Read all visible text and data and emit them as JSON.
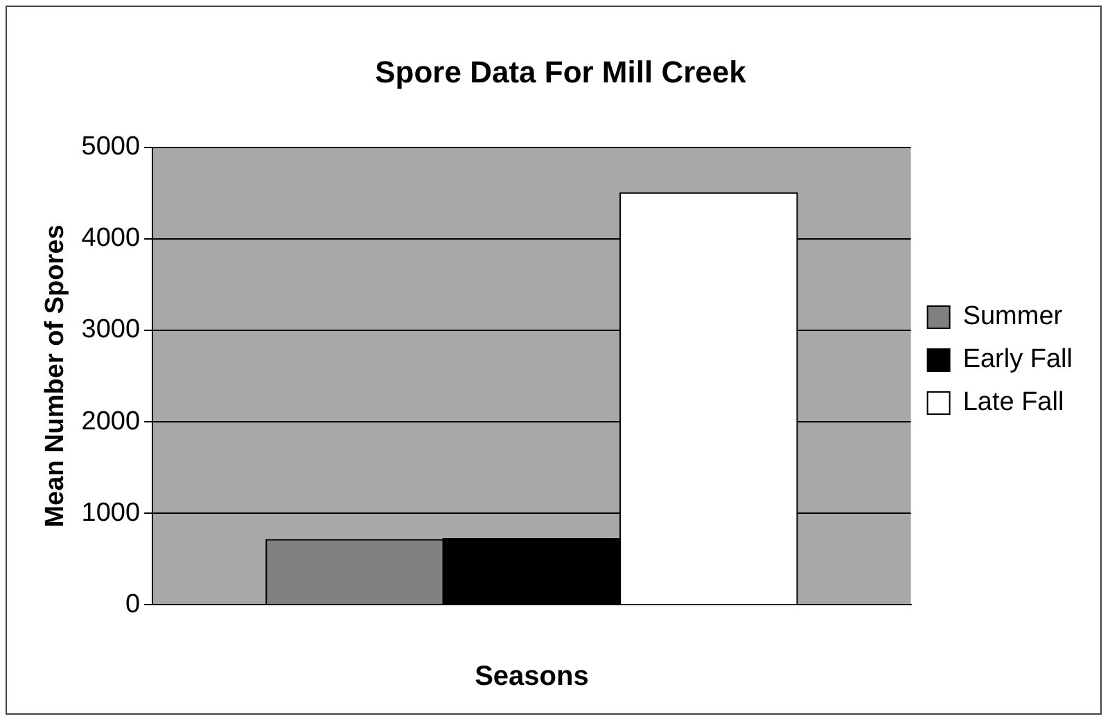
{
  "chart_data": {
    "type": "bar",
    "title": "Spore Data For Mill Creek",
    "xlabel": "Seasons",
    "ylabel": "Mean Number of Spores",
    "categories": [
      null
    ],
    "series": [
      {
        "name": "Summer",
        "color": "#808080",
        "values": [
          710
        ]
      },
      {
        "name": "Early Fall",
        "color": "#000000",
        "values": [
          720
        ]
      },
      {
        "name": "Late Fall",
        "color": "#ffffff",
        "values": [
          4500
        ]
      }
    ],
    "ylim": [
      0,
      5000
    ],
    "yticks": [
      0,
      1000,
      2000,
      3000,
      4000,
      5000
    ],
    "grid": "y",
    "legend": "right"
  }
}
